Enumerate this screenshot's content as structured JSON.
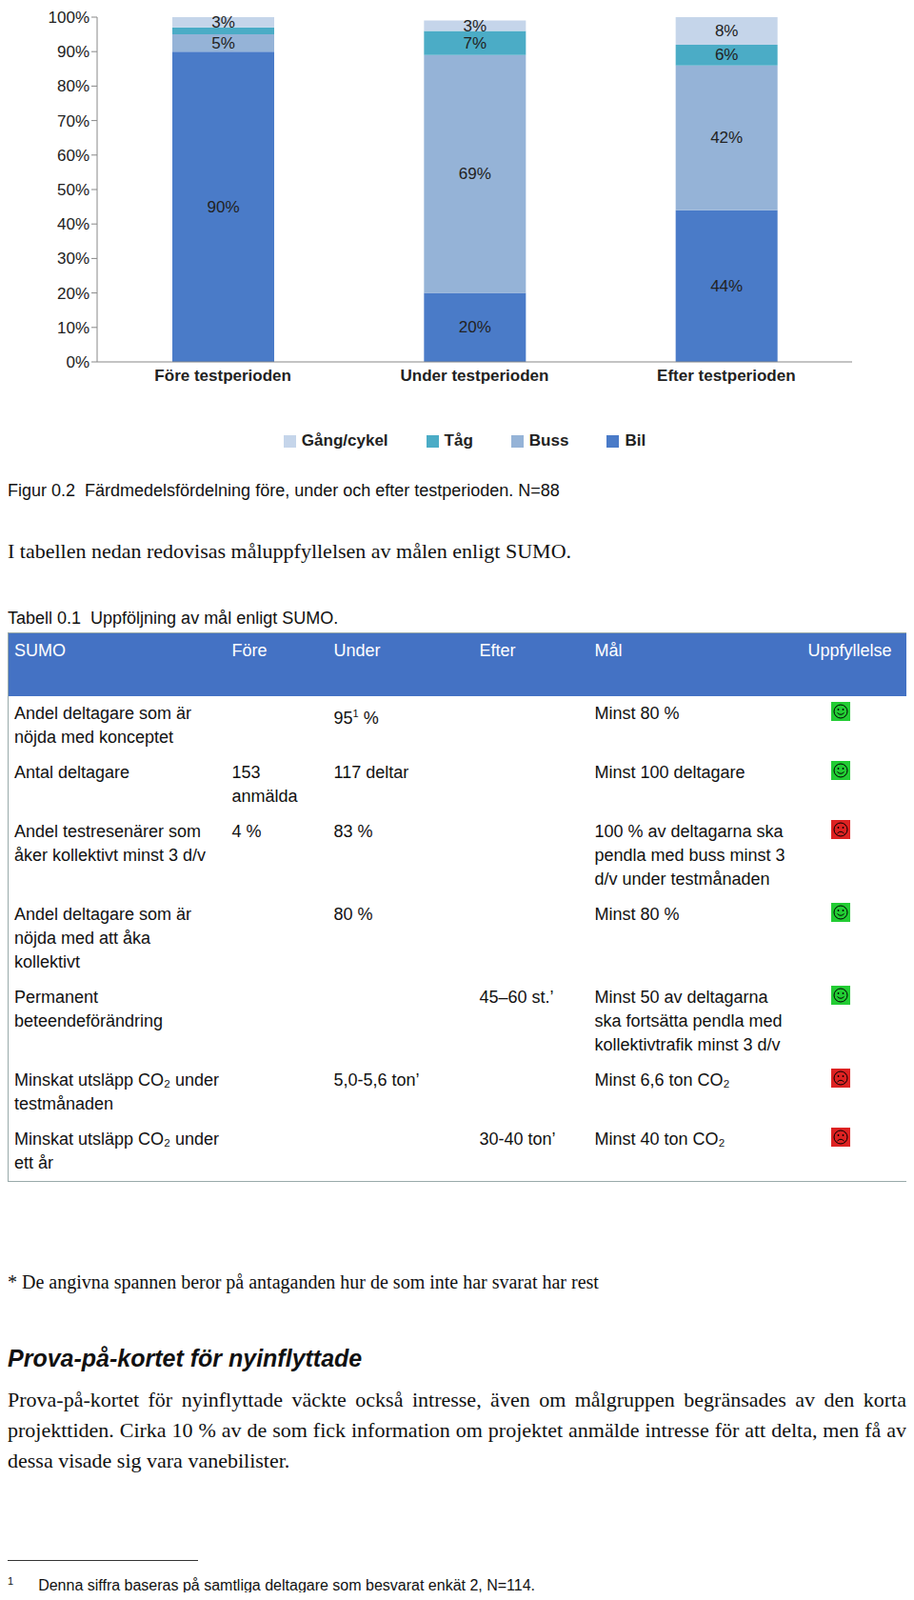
{
  "chart_data": {
    "type": "bar",
    "stacked": true,
    "data_labels": true,
    "grid": false,
    "legend": "bottom",
    "categories": [
      "Före testperioden",
      "Under testperioden",
      "Efter testperioden"
    ],
    "ylim": [
      0,
      100
    ],
    "yticks": [
      {
        "value": 0,
        "label": "0%"
      },
      {
        "value": 10,
        "label": "10%"
      },
      {
        "value": 20,
        "label": "20%"
      },
      {
        "value": 30,
        "label": "30%"
      },
      {
        "value": 40,
        "label": "40%"
      },
      {
        "value": 50,
        "label": "50%"
      },
      {
        "value": 60,
        "label": "60%"
      },
      {
        "value": 70,
        "label": "70%"
      },
      {
        "value": 80,
        "label": "80%"
      },
      {
        "value": 90,
        "label": "90%"
      },
      {
        "value": 100,
        "label": "100%"
      }
    ],
    "series": [
      {
        "name": "Bil",
        "color": "#4a7bc8",
        "values": [
          90,
          20,
          44
        ],
        "value_labels": [
          "90%",
          "20%",
          "44%"
        ]
      },
      {
        "name": "Buss",
        "color": "#95b3d7",
        "values": [
          5,
          69,
          42
        ],
        "value_labels": [
          "5%",
          "69%",
          "42%"
        ]
      },
      {
        "name": "Tåg",
        "color": "#4bacc6",
        "values": [
          2,
          7,
          6
        ],
        "value_labels": [
          null,
          "7%",
          "6%"
        ]
      },
      {
        "name": "Gång/cykel",
        "color": "#c5d5ea",
        "values": [
          3,
          3,
          8
        ],
        "value_labels": [
          "3%",
          "3%",
          "8%"
        ]
      }
    ]
  },
  "caption": "Figur 0.2  Färdmedelsfördelning före, under och efter testperioden. N=88",
  "intro": "I tabellen nedan redovisas måluppfyllelsen av målen enligt SUMO.",
  "table": {
    "title": "Tabell 0.1  Uppföljning av mål enligt SUMO.",
    "header": [
      "SUMO",
      "Före",
      "Under",
      "Efter",
      "Mål",
      "Uppfyllelse"
    ],
    "rows": [
      {
        "label": "Andel deltagare som är nöjda med konceptet",
        "fore": null,
        "under": {
          "text": "95",
          "sup": "1",
          "after": " %"
        },
        "efter": null,
        "mal": "Minst 80 %",
        "fulfilled": true
      },
      {
        "label": "Antal deltagare",
        "fore": "153 anmälda",
        "under": "117 deltar",
        "efter": null,
        "mal": "Minst 100 deltagare",
        "fulfilled": true
      },
      {
        "label": "Andel testresenärer som åker kollektivt minst 3 d/v",
        "fore": "4 %",
        "under": "83 %",
        "efter": null,
        "mal": "100 % av deltagarna ska pendla med buss minst 3 d/v under testmånaden",
        "fulfilled": false
      },
      {
        "label": "Andel deltagare som är nöjda med att åka kollektivt",
        "fore": null,
        "under": "80 %",
        "efter": null,
        "mal": "Minst 80 %",
        "fulfilled": true
      },
      {
        "label": "Permanent beteendeförändring",
        "fore": null,
        "under": null,
        "efter": "45–60 st.’",
        "mal": "Minst 50 av deltagarna ska fortsätta pendla med kollektivtrafik minst 3 d/v",
        "fulfilled": true
      },
      {
        "label": "Minskat utsläpp CO₂ under testmånaden",
        "fore": null,
        "under": "5,0-5,6 ton’",
        "efter": null,
        "mal": "Minst 6,6 ton CO₂",
        "fulfilled": false
      },
      {
        "label": "Minskat utsläpp CO₂ under ett år",
        "fore": null,
        "under": null,
        "efter": "30-40 ton’",
        "mal": "Minst 40 ton CO₂",
        "fulfilled": false
      }
    ],
    "note": "* De angivna spannen beror på antaganden hur de som inte har svarat har rest"
  },
  "heading": "Prova-på-kortet för nyinflyttade",
  "paragraph": "Prova-på-kortet för nyinflyttade väckte också intresse, även om målgruppen begränsades av den korta projekttiden. Cirka 10 % av de som fick information om projektet anmälde intresse för att delta, men få av dessa visade sig vara vanebilister.",
  "footnote": {
    "mark": "1",
    "text": "Denna siffra baseras på samtliga deltagare som besvarat enkät 2, N=114."
  }
}
